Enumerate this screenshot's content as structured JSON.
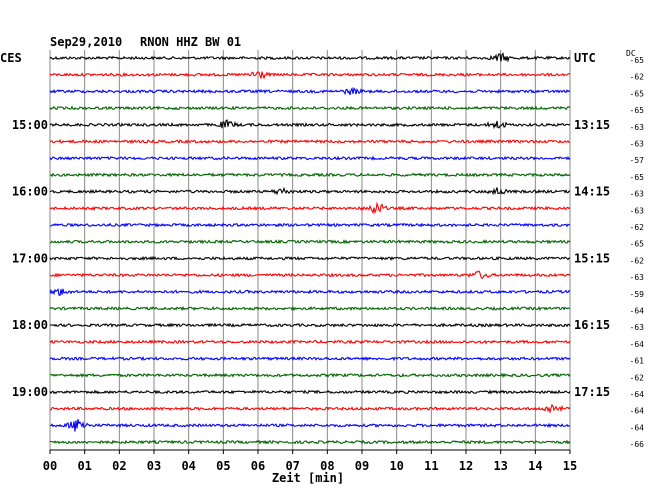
{
  "header": {
    "date": "Sep29,2010",
    "station": "RNON HHZ BW 01",
    "left_zone": "CES",
    "right_zone": "UTC",
    "dc_label": "DC"
  },
  "chart_data": {
    "type": "line",
    "title": "Sep29,2010 RNON HHZ BW 01",
    "xlabel": "Zeit [min]",
    "ylabel": "",
    "x_ticks": [
      "00",
      "01",
      "02",
      "03",
      "04",
      "05",
      "06",
      "07",
      "08",
      "09",
      "10",
      "11",
      "12",
      "13",
      "14",
      "15"
    ],
    "xlim": [
      0,
      15
    ],
    "grid": true,
    "left_hour_labels": [
      {
        "trace": 4,
        "label": "15:00"
      },
      {
        "trace": 8,
        "label": "16:00"
      },
      {
        "trace": 12,
        "label": "17:00"
      },
      {
        "trace": 16,
        "label": "18:00"
      },
      {
        "trace": 20,
        "label": "19:00"
      }
    ],
    "right_hour_labels": [
      {
        "trace": 0,
        "label": "UTC"
      },
      {
        "trace": 4,
        "label": "13:15"
      },
      {
        "trace": 8,
        "label": "14:15"
      },
      {
        "trace": 12,
        "label": "15:15"
      },
      {
        "trace": 16,
        "label": "16:15"
      },
      {
        "trace": 20,
        "label": "17:15"
      }
    ],
    "dc_offsets": [
      -65,
      -62,
      -65,
      -65,
      -63,
      -63,
      -57,
      -65,
      -63,
      -63,
      -62,
      -65,
      -62,
      -63,
      -59,
      -64,
      -63,
      -64,
      -61,
      -62,
      -64,
      -64,
      -64,
      -66
    ],
    "trace_colors": [
      "#000000",
      "#ff0000",
      "#0000ff",
      "#006400"
    ],
    "events": [
      {
        "trace": 0,
        "minute": 13.0,
        "amplitude": 1.8
      },
      {
        "trace": 1,
        "minute": 6.0,
        "amplitude": 2.2
      },
      {
        "trace": 2,
        "minute": 8.7,
        "amplitude": 1.2
      },
      {
        "trace": 4,
        "minute": 5.1,
        "amplitude": 1.6
      },
      {
        "trace": 4,
        "minute": 12.9,
        "amplitude": 1.6
      },
      {
        "trace": 8,
        "minute": 6.7,
        "amplitude": 1.3
      },
      {
        "trace": 8,
        "minute": 12.9,
        "amplitude": 1.5
      },
      {
        "trace": 9,
        "minute": 9.4,
        "amplitude": 2.8
      },
      {
        "trace": 13,
        "minute": 12.4,
        "amplitude": 1.6
      },
      {
        "trace": 14,
        "minute": 0.3,
        "amplitude": 1.4
      },
      {
        "trace": 21,
        "minute": 14.5,
        "amplitude": 1.8
      },
      {
        "trace": 22,
        "minute": 0.8,
        "amplitude": 3.2
      }
    ]
  }
}
